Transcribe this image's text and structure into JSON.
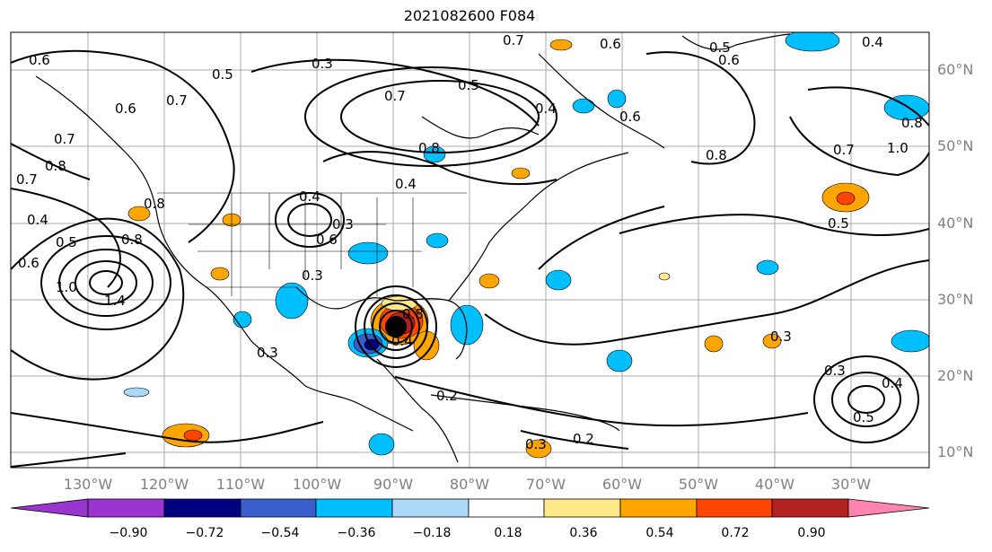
{
  "title": "2021082600 F084",
  "lat_labels": [
    "60°N",
    "50°N",
    "40°N",
    "30°N",
    "20°N",
    "10°N"
  ],
  "lon_labels": [
    "130°W",
    "120°W",
    "110°W",
    "100°W",
    "90°W",
    "80°W",
    "70°W",
    "60°W",
    "50°W",
    "40°W",
    "30°W"
  ],
  "colorbar": {
    "ticks": [
      "−0.90",
      "−0.72",
      "−0.54",
      "−0.36",
      "−0.18",
      "0.18",
      "0.36",
      "0.54",
      "0.72",
      "0.90"
    ],
    "colors": [
      "#9a35d0",
      "#000080",
      "#3a5fcd",
      "#00bfff",
      "#add8f7",
      "#ffffff",
      "#ffe88a",
      "#ffa500",
      "#ff4500",
      "#b22222",
      "#ff85b0"
    ]
  },
  "contour_labels": [
    "0.6",
    "0.3",
    "0.7",
    "0.5",
    "0.6",
    "0.5",
    "0.6",
    "0.7",
    "0.7",
    "0.6",
    "0.4",
    "0.5",
    "0.6",
    "0.8",
    "0.4",
    "0.8",
    "0.8",
    "0.7",
    "1.0",
    "0.8",
    "0.7",
    "0.7",
    "0.8",
    "0.4",
    "0.5",
    "0.6",
    "1.0",
    "1.4",
    "0.8",
    "0.4",
    "0.6",
    "0.3",
    "0.3",
    "0.2",
    "0.2",
    "0.3",
    "0.3",
    "0.3",
    "0.4",
    "0.5",
    "0.5",
    "0.8",
    "0.4",
    "0.4",
    "0.3"
  ],
  "colors": {
    "map_border": "#000000",
    "grid": "#aaaaaa",
    "tick_label": "#808080"
  }
}
